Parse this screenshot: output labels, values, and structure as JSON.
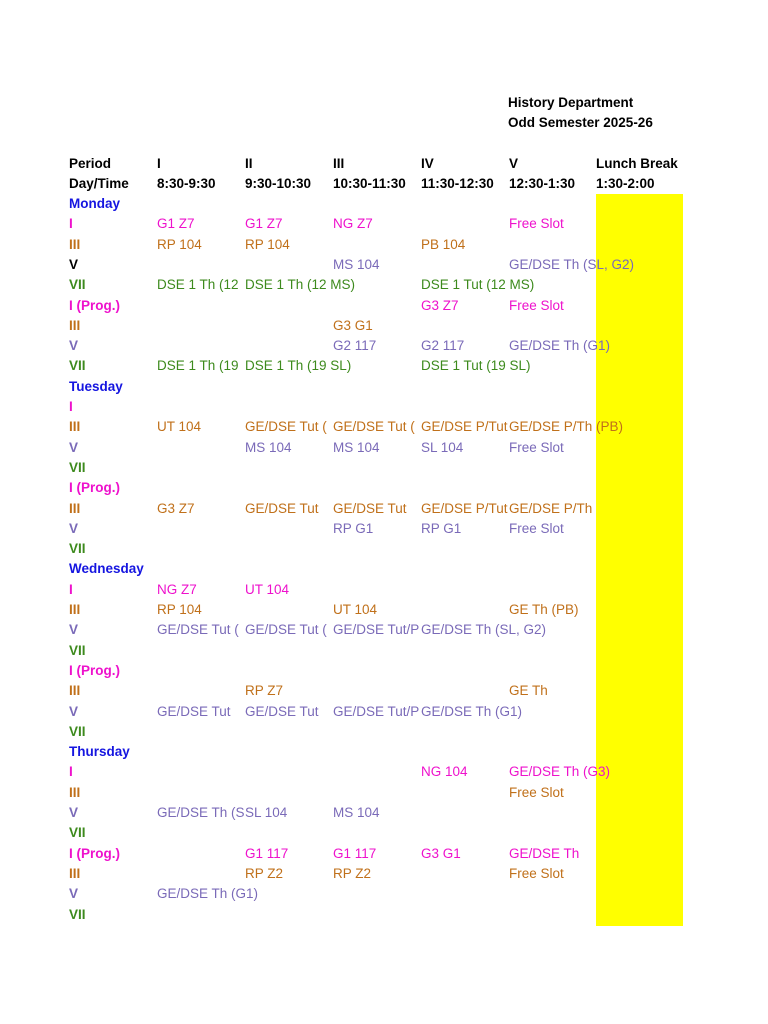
{
  "header": {
    "department": "History Department",
    "semester": "Odd Semester 2025-26"
  },
  "colors": {
    "black": "#000000",
    "day": "#1515e0",
    "magenta": "#ee11cc",
    "orange": "#c0701a",
    "purple": "#7a6ab8",
    "green": "#3d8a1d",
    "lunch": "#ffff00"
  },
  "columns": {
    "period": "Period",
    "daytime": "Day/Time",
    "labels": [
      "I",
      "II",
      "III",
      "IV",
      "V",
      "Lunch Break"
    ],
    "times": [
      "8:30-9:30",
      "9:30-10:30",
      "10:30-11:30",
      "11:30-12:30",
      "12:30-1:30",
      "1:30-2:00"
    ]
  },
  "rows": [
    {
      "type": "day",
      "label": "Monday"
    },
    {
      "type": "sem",
      "label": "I",
      "style": "m",
      "cells": [
        [
          "G1 Z7",
          "m"
        ],
        [
          "G1 Z7",
          "m"
        ],
        [
          "NG Z7",
          "m"
        ],
        null,
        [
          "Free Slot",
          "m"
        ]
      ]
    },
    {
      "type": "sem",
      "label": "III",
      "style": "o",
      "cells": [
        [
          "RP 104",
          "o"
        ],
        [
          "RP 104",
          "o"
        ],
        null,
        [
          "PB 104",
          "o"
        ],
        null
      ]
    },
    {
      "type": "sem",
      "label": "V",
      "style": "k",
      "cells": [
        null,
        null,
        [
          "MS 104",
          "p"
        ],
        null,
        [
          "GE/DSE Th (SL, G2)",
          "p"
        ]
      ]
    },
    {
      "type": "sem",
      "label": "VII",
      "style": "g",
      "cells": [
        [
          "DSE 1 Th (12",
          "g"
        ],
        [
          "DSE 1 Th (12 MS)",
          "g"
        ],
        null,
        [
          "DSE 1 Tut (12 MS)",
          "g"
        ],
        null
      ]
    },
    {
      "type": "sem",
      "label": "I (Prog.)",
      "style": "m",
      "cells": [
        null,
        null,
        null,
        [
          "G3 Z7",
          "m"
        ],
        [
          "Free Slot",
          "m"
        ]
      ]
    },
    {
      "type": "sem",
      "label": "III",
      "style": "o",
      "cells": [
        null,
        null,
        [
          "G3 G1",
          "o"
        ],
        null,
        null
      ]
    },
    {
      "type": "sem",
      "label": "V",
      "style": "p",
      "cells": [
        null,
        null,
        [
          "G2 117",
          "p"
        ],
        [
          "G2 117",
          "p"
        ],
        [
          "GE/DSE Th (G1)",
          "p"
        ]
      ]
    },
    {
      "type": "sem",
      "label": "VII",
      "style": "g",
      "cells": [
        [
          "DSE 1 Th (19",
          "g"
        ],
        [
          "DSE 1 Th (19 SL)",
          "g"
        ],
        null,
        [
          "DSE 1 Tut (19 SL)",
          "g"
        ],
        null
      ]
    },
    {
      "type": "day",
      "label": "Tuesday"
    },
    {
      "type": "sem",
      "label": "I",
      "style": "m",
      "cells": [
        null,
        null,
        null,
        null,
        null
      ]
    },
    {
      "type": "sem",
      "label": "III",
      "style": "o",
      "cells": [
        [
          "UT 104",
          "o"
        ],
        [
          "GE/DSE Tut (",
          "o"
        ],
        [
          "GE/DSE Tut (",
          "o"
        ],
        [
          "GE/DSE P/Tut",
          "o"
        ],
        [
          "GE/DSE P/Th (PB)",
          "o"
        ]
      ]
    },
    {
      "type": "sem",
      "label": "V",
      "style": "p",
      "cells": [
        null,
        [
          "MS 104",
          "p"
        ],
        [
          "MS 104",
          "p"
        ],
        [
          "SL 104",
          "p"
        ],
        [
          "Free Slot",
          "p"
        ]
      ]
    },
    {
      "type": "sem",
      "label": "VII",
      "style": "g",
      "cells": [
        null,
        null,
        null,
        null,
        null
      ]
    },
    {
      "type": "sem",
      "label": "I (Prog.)",
      "style": "m",
      "cells": [
        null,
        null,
        null,
        null,
        null
      ]
    },
    {
      "type": "sem",
      "label": "III",
      "style": "o",
      "cells": [
        [
          "G3 Z7",
          "o"
        ],
        [
          "GE/DSE Tut",
          "o"
        ],
        [
          "GE/DSE Tut",
          "o"
        ],
        [
          "GE/DSE P/Tut",
          "o"
        ],
        [
          "GE/DSE P/Th",
          "o"
        ]
      ]
    },
    {
      "type": "sem",
      "label": "V",
      "style": "p",
      "cells": [
        null,
        null,
        [
          "RP G1",
          "p"
        ],
        [
          "RP G1",
          "p"
        ],
        [
          "Free Slot",
          "p"
        ]
      ]
    },
    {
      "type": "sem",
      "label": "VII",
      "style": "g",
      "cells": [
        null,
        null,
        null,
        null,
        null
      ]
    },
    {
      "type": "day",
      "label": "Wednesday"
    },
    {
      "type": "sem",
      "label": "I",
      "style": "m",
      "cells": [
        [
          "NG Z7",
          "m"
        ],
        [
          "UT 104",
          "m"
        ],
        null,
        null,
        null
      ]
    },
    {
      "type": "sem",
      "label": "III",
      "style": "o",
      "cells": [
        [
          "RP 104",
          "o"
        ],
        null,
        [
          "UT 104",
          "o"
        ],
        null,
        [
          "GE Th (PB)",
          "o"
        ]
      ]
    },
    {
      "type": "sem",
      "label": "V",
      "style": "p",
      "cells": [
        [
          "GE/DSE Tut (",
          "p"
        ],
        [
          "GE/DSE Tut (",
          "p"
        ],
        [
          "GE/DSE Tut/P",
          "p"
        ],
        [
          "GE/DSE Th (SL, G2)",
          "p"
        ],
        null
      ]
    },
    {
      "type": "sem",
      "label": "VII",
      "style": "g",
      "cells": [
        null,
        null,
        null,
        null,
        null
      ]
    },
    {
      "type": "sem",
      "label": "I (Prog.)",
      "style": "m",
      "cells": [
        null,
        null,
        null,
        null,
        null
      ]
    },
    {
      "type": "sem",
      "label": "III",
      "style": "o",
      "cells": [
        null,
        [
          "RP Z7",
          "o"
        ],
        null,
        null,
        [
          "GE Th",
          "o"
        ]
      ]
    },
    {
      "type": "sem",
      "label": "V",
      "style": "p",
      "cells": [
        [
          "GE/DSE Tut",
          "p"
        ],
        [
          "GE/DSE Tut",
          "p"
        ],
        [
          "GE/DSE Tut/P",
          "p"
        ],
        [
          "GE/DSE Th (G1)",
          "p"
        ],
        null
      ]
    },
    {
      "type": "sem",
      "label": "VII",
      "style": "g",
      "cells": [
        null,
        null,
        null,
        null,
        null
      ]
    },
    {
      "type": "day",
      "label": "Thursday"
    },
    {
      "type": "sem",
      "label": "I",
      "style": "m",
      "cells": [
        null,
        null,
        null,
        [
          "NG 104",
          "m"
        ],
        [
          "GE/DSE Th (G3)",
          "m"
        ]
      ]
    },
    {
      "type": "sem",
      "label": "III",
      "style": "o",
      "cells": [
        null,
        null,
        null,
        null,
        [
          "Free Slot",
          "o"
        ]
      ]
    },
    {
      "type": "sem",
      "label": "V",
      "style": "p",
      "cells": [
        [
          "GE/DSE Th (S",
          "p"
        ],
        [
          "SL 104",
          "p"
        ],
        [
          "MS 104",
          "p"
        ],
        null,
        null
      ]
    },
    {
      "type": "sem",
      "label": "VII",
      "style": "g",
      "cells": [
        null,
        null,
        null,
        null,
        null
      ]
    },
    {
      "type": "sem",
      "label": "I (Prog.)",
      "style": "m",
      "cells": [
        null,
        [
          "G1 117",
          "m"
        ],
        [
          "G1 117",
          "m"
        ],
        [
          "G3 G1",
          "m"
        ],
        [
          "GE/DSE Th",
          "m"
        ]
      ]
    },
    {
      "type": "sem",
      "label": "III",
      "style": "o",
      "cells": [
        null,
        [
          "RP Z2",
          "o"
        ],
        [
          "RP Z2",
          "o"
        ],
        null,
        [
          "Free Slot",
          "o"
        ]
      ]
    },
    {
      "type": "sem",
      "label": "V",
      "style": "p",
      "cells": [
        [
          "GE/DSE Th (G1)",
          "p"
        ],
        null,
        null,
        null,
        null
      ]
    },
    {
      "type": "sem",
      "label": "VII",
      "style": "g",
      "cells": [
        null,
        null,
        null,
        null,
        null
      ]
    }
  ]
}
